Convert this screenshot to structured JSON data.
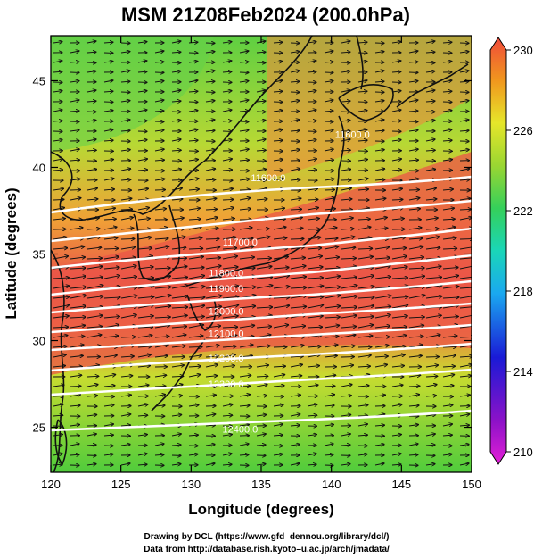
{
  "title": "MSM 21Z08Feb2024 (200.0hPa)",
  "xlabel": "Longitude (degrees)",
  "ylabel": "Latitude  (degrees)",
  "credits": [
    "Drawing by DCL (https://www.gfd–dennou.org/library/dcl/)",
    "Data from http://database.rish.kyoto–u.ac.jp/arch/jmadata/"
  ],
  "colorbar": {
    "range": [
      210,
      230
    ],
    "tick_labels": [
      "230",
      "226",
      "222",
      "218",
      "214",
      "210"
    ]
  },
  "chart_data": {
    "type": "heatmap",
    "title": "MSM 21Z08Feb2024 (200.0hPa)",
    "xlabel": "Longitude (degrees)",
    "ylabel": "Latitude  (degrees)",
    "xlim": [
      120,
      150
    ],
    "ylim": [
      22.4,
      47.6
    ],
    "x_ticks": [
      120,
      125,
      130,
      135,
      140,
      145,
      150
    ],
    "x_tick_labels": [
      "120",
      "125",
      "130",
      "135",
      "140",
      "145",
      "150"
    ],
    "y_ticks": [
      25,
      30,
      35,
      40,
      45
    ],
    "y_tick_labels": [
      "25",
      "30",
      "35",
      "40",
      "45"
    ],
    "shaded_field_range": [
      210,
      230
    ],
    "wind_vectors": "westerly arrows covering the domain",
    "contours": [
      {
        "label": "11600.0",
        "lon": 135.5,
        "lat": 39.2
      },
      {
        "label": "11600.0",
        "lon": 141.5,
        "lat": 41.7
      },
      {
        "label": "11700.0",
        "lon": 133.5,
        "lat": 35.5
      },
      {
        "label": "11800.0",
        "lon": 132.5,
        "lat": 33.7
      },
      {
        "label": "11900.0",
        "lon": 132.5,
        "lat": 32.8
      },
      {
        "label": "12000.0",
        "lon": 132.5,
        "lat": 31.5
      },
      {
        "label": "12100.0",
        "lon": 132.5,
        "lat": 30.2
      },
      {
        "label": "12200.0",
        "lon": 132.5,
        "lat": 28.8
      },
      {
        "label": "12300.0",
        "lon": 132.5,
        "lat": 27.3
      },
      {
        "label": "12400.0",
        "lon": 133.5,
        "lat": 24.7
      }
    ]
  }
}
